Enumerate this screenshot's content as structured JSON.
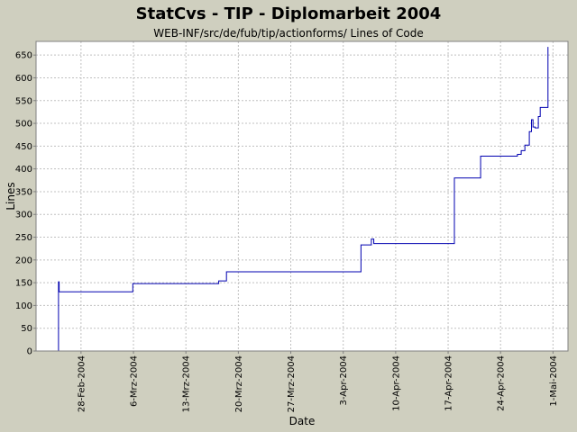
{
  "chart_data": {
    "type": "line",
    "title": "StatCvs - TIP - Diplomarbeit 2004",
    "subtitle": "WEB-INF/src/de/fub/tip/actionforms/ Lines of Code",
    "xlabel": "Date",
    "ylabel": "Lines",
    "ylim": [
      0,
      680
    ],
    "xlim": [
      "2004-02-22",
      "2004-05-03"
    ],
    "y_ticks": [
      0,
      50,
      100,
      150,
      200,
      250,
      300,
      350,
      400,
      450,
      500,
      550,
      600,
      650
    ],
    "x_ticks": [
      {
        "date": "2004-02-28",
        "label": "28-Feb-2004"
      },
      {
        "date": "2004-03-06",
        "label": "6-Mrz-2004"
      },
      {
        "date": "2004-03-13",
        "label": "13-Mrz-2004"
      },
      {
        "date": "2004-03-20",
        "label": "20-Mrz-2004"
      },
      {
        "date": "2004-03-27",
        "label": "27-Mrz-2004"
      },
      {
        "date": "2004-04-03",
        "label": "3-Apr-2004"
      },
      {
        "date": "2004-04-10",
        "label": "10-Apr-2004"
      },
      {
        "date": "2004-04-17",
        "label": "17-Apr-2004"
      },
      {
        "date": "2004-04-24",
        "label": "24-Apr-2004"
      },
      {
        "date": "2004-05-01",
        "label": "1-Mai-2004"
      }
    ],
    "grid": true,
    "line_color": "#0000b0",
    "series": [
      {
        "points": [
          [
            "2004-02-25T00:00",
            0
          ],
          [
            "2004-02-25T00:00",
            152
          ],
          [
            "2004-02-25T02:00",
            152
          ],
          [
            "2004-02-25T02:00",
            130
          ],
          [
            "2004-03-05T22:00",
            130
          ],
          [
            "2004-03-05T22:00",
            148
          ],
          [
            "2004-03-17T09:00",
            148
          ],
          [
            "2004-03-17T09:00",
            154
          ],
          [
            "2004-03-18T10:00",
            154
          ],
          [
            "2004-03-18T10:00",
            174
          ],
          [
            "2004-04-05T09:00",
            174
          ],
          [
            "2004-04-05T09:00",
            233
          ],
          [
            "2004-04-06T18:00",
            233
          ],
          [
            "2004-04-06T18:00",
            246
          ],
          [
            "2004-04-07T02:00",
            246
          ],
          [
            "2004-04-07T02:00",
            236
          ],
          [
            "2004-04-17T20:00",
            236
          ],
          [
            "2004-04-17T20:00",
            380
          ],
          [
            "2004-04-21T08:00",
            380
          ],
          [
            "2004-04-21T08:00",
            428
          ],
          [
            "2004-04-26T06:00",
            428
          ],
          [
            "2004-04-26T06:00",
            432
          ],
          [
            "2004-04-26T18:00",
            432
          ],
          [
            "2004-04-26T18:00",
            440
          ],
          [
            "2004-04-27T06:00",
            440
          ],
          [
            "2004-04-27T06:00",
            452
          ],
          [
            "2004-04-27T20:00",
            452
          ],
          [
            "2004-04-27T20:00",
            482
          ],
          [
            "2004-04-28T03:00",
            482
          ],
          [
            "2004-04-28T03:00",
            508
          ],
          [
            "2004-04-28T08:00",
            508
          ],
          [
            "2004-04-28T08:00",
            492
          ],
          [
            "2004-04-28T15:00",
            492
          ],
          [
            "2004-04-28T15:00",
            490
          ],
          [
            "2004-04-29T01:00",
            490
          ],
          [
            "2004-04-29T01:00",
            515
          ],
          [
            "2004-04-29T07:00",
            515
          ],
          [
            "2004-04-29T07:00",
            535
          ],
          [
            "2004-04-30T08:00",
            535
          ],
          [
            "2004-04-30T08:00",
            668
          ]
        ]
      }
    ]
  }
}
